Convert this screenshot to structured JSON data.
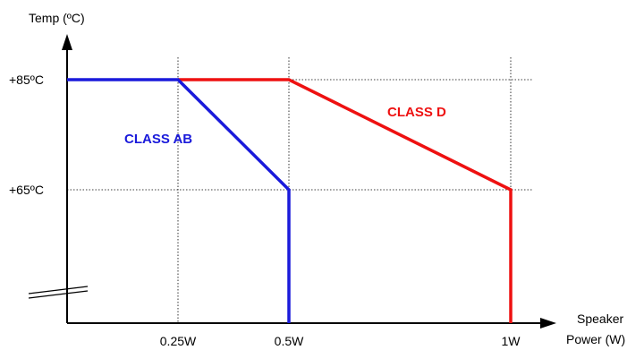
{
  "chart_data": {
    "type": "line",
    "ylabel": "Temp (ºC)",
    "xlabel_line1": "Speaker",
    "xlabel_line2": "Power (W)",
    "x_ticks": [
      {
        "value": 0.25,
        "label": "0.25W"
      },
      {
        "value": 0.5,
        "label": "0.5W"
      },
      {
        "value": 1.0,
        "label": "1W"
      }
    ],
    "y_ticks": [
      {
        "value": 85,
        "label": "+85ºC"
      },
      {
        "value": 65,
        "label": "+65ºC"
      }
    ],
    "xlim": [
      0,
      1.1
    ],
    "ylim": [
      60,
      90
    ],
    "grid": "dotted guides at tick values",
    "y_axis_break": true,
    "series": [
      {
        "name": "CLASS AB",
        "color": "#1a1adb",
        "points": [
          [
            0,
            85
          ],
          [
            0.25,
            85
          ],
          [
            0.5,
            65
          ],
          [
            0.5,
            0
          ]
        ]
      },
      {
        "name": "CLASS D",
        "color": "#ee1111",
        "points": [
          [
            0.25,
            85
          ],
          [
            0.5,
            85
          ],
          [
            1.0,
            65
          ],
          [
            1.0,
            0
          ]
        ]
      }
    ]
  }
}
